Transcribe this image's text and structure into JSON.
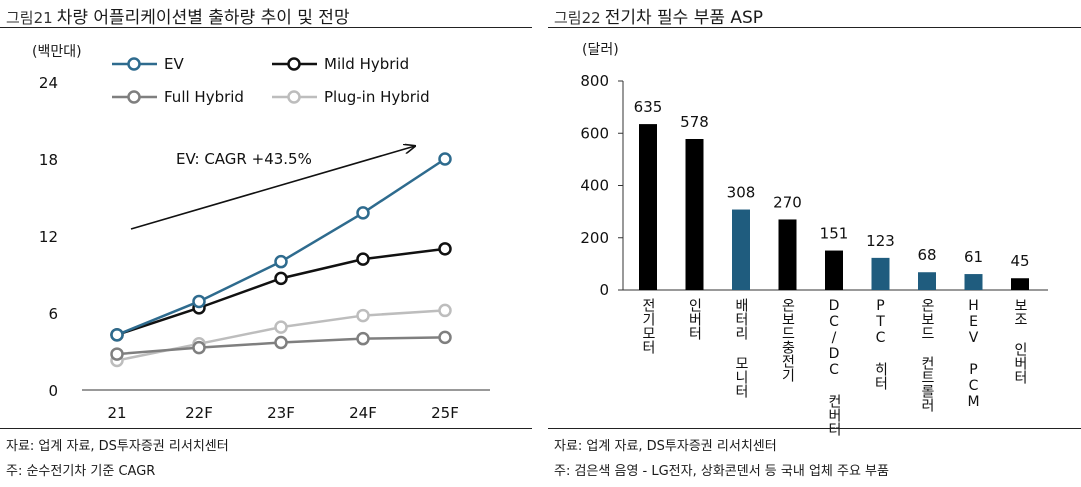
{
  "left_panel": {
    "fig_num": "그림21",
    "title": "차량 어플리케이션별 출하량 추이 및 전망",
    "unit": "(백만대)",
    "annotation": "EV: CAGR +43.5%",
    "source": "자료: 업계 자료, DS투자증권 리서치센터",
    "footnote": "주: 순수전기차 기준 CAGR"
  },
  "right_panel": {
    "fig_num": "그림22",
    "title": "전기차 필수 부품 ASP",
    "unit": "(달러)",
    "source": "자료: 업계 자료, DS투자증권 리서치센터",
    "footnote": "주: 검은색 음영 - LG전자, 상화콘덴서 등 국내 업체 주요 부품"
  },
  "chart_data": [
    {
      "type": "line",
      "categories": [
        "21",
        "22F",
        "23F",
        "24F",
        "25F"
      ],
      "ylim": [
        0,
        24
      ],
      "yticks": [
        0,
        6,
        12,
        18,
        24
      ],
      "grid": false,
      "legend_position": "top",
      "series": [
        {
          "name": "EV",
          "color": "#2e6b8e",
          "values": [
            4.3,
            6.9,
            10.0,
            13.8,
            18.0
          ]
        },
        {
          "name": "Mild Hybrid",
          "color": "#111111",
          "values": [
            4.3,
            6.4,
            8.7,
            10.2,
            11.0
          ]
        },
        {
          "name": "Full Hybrid",
          "color": "#7f7f7f",
          "values": [
            2.8,
            3.3,
            3.7,
            4.0,
            4.1
          ]
        },
        {
          "name": "Plug-in Hybrid",
          "color": "#bdbdbd",
          "values": [
            2.3,
            3.6,
            4.9,
            5.8,
            6.2
          ]
        }
      ]
    },
    {
      "type": "bar",
      "ylim": [
        0,
        800
      ],
      "yticks": [
        0,
        200,
        400,
        600,
        800
      ],
      "grid": false,
      "categories": [
        "전기모터",
        "인버터",
        "배터리 모니터",
        "온보드충전기",
        "DC/DC 컨버터",
        "PTC 히터",
        "온보드 컨트롤러",
        "HEV PCM",
        "보조 인버터"
      ],
      "values": [
        635,
        578,
        308,
        270,
        151,
        123,
        68,
        61,
        45
      ],
      "colors": [
        "#000000",
        "#000000",
        "#1f5c7e",
        "#000000",
        "#000000",
        "#1f5c7e",
        "#1f5c7e",
        "#1f5c7e",
        "#000000"
      ]
    }
  ]
}
